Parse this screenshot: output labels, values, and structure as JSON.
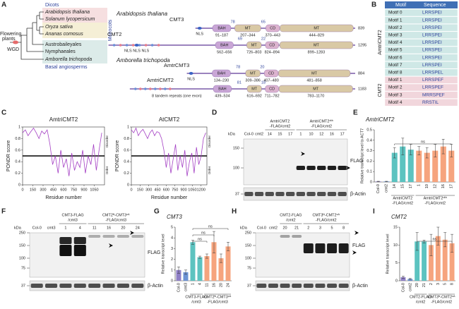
{
  "panel_letters": [
    "A",
    "B",
    "C",
    "D",
    "E",
    "F",
    "G",
    "H",
    "I"
  ],
  "panel_a": {
    "species": [
      "Arabidopsis thaliana",
      "Solanum lycopersicum",
      "Oryza sativa",
      "Ananas comosus",
      "Austrobaileyales",
      "Nymphaeales",
      "Amborella trichopoda"
    ],
    "groups": [
      "Dicots",
      "Monocots",
      "Basal angiosperms"
    ],
    "root": [
      "Flowering",
      "plants"
    ],
    "wgd": "WGD",
    "diagram_species": [
      "Arabidopsis thaliana",
      "Amborella trichopoda"
    ],
    "repeat_note": "8 tandem repeats (one exon)",
    "proteins": [
      {
        "name": "CMT3",
        "length": 839,
        "nls": "NLS",
        "linkers": [
          78,
          65
        ],
        "domains": [
          {
            "name": "BAH",
            "start": 91,
            "end": 187,
            "range": "91–187"
          },
          {
            "name": "MT",
            "start": 207,
            "end": 344,
            "range": "207–344"
          },
          {
            "name": "CD",
            "start": 370,
            "end": 443,
            "range": "370–443"
          },
          {
            "name": "MT",
            "start": 444,
            "end": 829,
            "range": "444–829"
          }
        ]
      },
      {
        "name": "CMT2",
        "length": 1295,
        "nls": "NLS NLS NLS",
        "linkers": [
          69,
          22
        ],
        "domains": [
          {
            "name": "BAH",
            "start": 562,
            "end": 656,
            "range": "562–656"
          },
          {
            "name": "MT",
            "start": 726,
            "end": 803,
            "range": "726–803"
          },
          {
            "name": "CD",
            "start": 824,
            "end": 894,
            "range": "824–894"
          },
          {
            "name": "MT",
            "start": 899,
            "end": 1283,
            "range": "899–1283"
          }
        ]
      },
      {
        "name": "AmtrCMT3",
        "length": 884,
        "nls": "NLS",
        "linkers": [
          78,
          20
        ],
        "domains": [
          {
            "name": "BAH",
            "start": 134,
            "end": 230,
            "range": "134–230"
          },
          {
            "name": "MT",
            "start": 309,
            "end": 386,
            "range": "309–386"
          },
          {
            "name": "CD",
            "start": 407,
            "end": 480,
            "range": "407–480"
          },
          {
            "name": "MT",
            "start": 481,
            "end": 858,
            "range": "481–858"
          }
        ]
      },
      {
        "name": "AmtriCMT2",
        "length": 1183,
        "nls": "",
        "linkers": [
          81,
          18
        ],
        "domains": [
          {
            "name": "BAH",
            "start": 439,
            "end": 534,
            "range": "439–534"
          },
          {
            "name": "MT",
            "start": 616,
            "end": 692,
            "range": "616–692"
          },
          {
            "name": "CD",
            "start": 711,
            "end": 782,
            "range": "711–782"
          },
          {
            "name": "MT",
            "start": 783,
            "end": 1170,
            "range": "783–1170"
          }
        ]
      }
    ]
  },
  "panel_b": {
    "header": [
      "Motif",
      "Sequence"
    ],
    "groups": [
      "AmtriCMT2",
      "CMT2"
    ],
    "rows": [
      [
        "Motif 0",
        "LRRSPEI"
      ],
      [
        "Motif 1",
        "LRRSPEI"
      ],
      [
        "Motif 2",
        "LRRSPEI"
      ],
      [
        "Motif 3",
        "LRRSPEI"
      ],
      [
        "Motif 4",
        "LRRSPEI"
      ],
      [
        "Motif 5",
        "LRRSPEI"
      ],
      [
        "Motif 6",
        "LRRSPEI"
      ],
      [
        "Motif 7",
        "LRRSPEI"
      ],
      [
        "Motif 8",
        "LRRSPEL"
      ],
      [
        "Motif 1",
        "LRRSPEF"
      ],
      [
        "Motif 2",
        "LRRSPEF"
      ],
      [
        "Motif 3",
        "MRRSPEF"
      ],
      [
        "Motif 4",
        "RRSTIL"
      ]
    ]
  },
  "blots": [
    {
      "lanes": [
        "Col-0",
        "cmt2",
        "14",
        "15",
        "17",
        "1",
        "10",
        "12",
        "16",
        "17"
      ],
      "groups": [
        [
          "AmtriCMT2",
          "-FLAG/cmt2"
        ],
        [
          "AmtriCMT2ᵈᵗʰ",
          "-FLAG/cmt2"
        ]
      ],
      "unit": "kDa",
      "markers": [
        "150",
        "100",
        "37"
      ],
      "signals": [
        "FLAG",
        "β-Actin"
      ]
    },
    {
      "lanes": [
        "Col-0",
        "cmt3",
        "1",
        "4",
        "11",
        "16",
        "20",
        "24"
      ],
      "groups": [
        [
          "CMT3-FLAG",
          "/cmt3"
        ],
        [
          "CMT2ᴺ-CMT3ᶜᴬ",
          "-FLAG/cmt3"
        ]
      ],
      "unit": "kDa",
      "markers": [
        "250",
        "150",
        "100",
        "75",
        "37"
      ],
      "signals": [
        "FLAG",
        "β-Actin"
      ]
    },
    {
      "lanes": [
        "Col-0",
        "cmt2",
        "20",
        "21",
        "2",
        "3",
        "5",
        "8"
      ],
      "groups": [
        [
          "CMT2-FLAG",
          "/cmt2"
        ],
        [
          "CMT3ᴺ-CMT2ᶜᴬ",
          "-FLAG/cmt2"
        ]
      ],
      "unit": "kDa",
      "markers": [
        "250",
        "150",
        "100",
        "75",
        "37"
      ],
      "signals": [
        "FLAG",
        "β-Actin"
      ]
    }
  ],
  "chart_data": [
    {
      "type": "line",
      "title": "AmtriCMT2",
      "xlabel": "Residue number",
      "ylabel": "PONDR score",
      "zones": [
        "Disorder",
        "Order"
      ],
      "color": "#a43fc4",
      "threshold": 0.5,
      "x": [
        0,
        40,
        80,
        120,
        160,
        200,
        240,
        280,
        320,
        360,
        400,
        440,
        480,
        520,
        560,
        600,
        640,
        680,
        720,
        760,
        800,
        840,
        880,
        920,
        960,
        1000,
        1040,
        1080,
        1120,
        1160
      ],
      "values": [
        0.9,
        0.95,
        0.85,
        0.92,
        0.98,
        0.9,
        0.8,
        0.93,
        0.88,
        0.95,
        0.7,
        0.35,
        0.5,
        0.2,
        0.6,
        0.3,
        0.45,
        0.15,
        0.55,
        0.25,
        0.4,
        0.3,
        0.6,
        0.2,
        0.5,
        0.35,
        0.7,
        0.25,
        0.6,
        0.9
      ],
      "xlim": [
        0,
        1200
      ],
      "xticks": [
        0,
        150,
        300,
        450,
        600,
        750,
        900,
        1050
      ],
      "ylim": [
        0,
        1
      ],
      "yticks": [
        0,
        0.2,
        0.4,
        0.6,
        0.8,
        1
      ]
    },
    {
      "type": "line",
      "title": "AtCMT2",
      "xlabel": "Residue number",
      "ylabel": "PONDR score",
      "zones": [
        "Disorder",
        "Order"
      ],
      "color": "#a43fc4",
      "threshold": 0.5,
      "x": [
        0,
        40,
        80,
        120,
        160,
        200,
        240,
        280,
        320,
        360,
        400,
        440,
        480,
        520,
        560,
        600,
        640,
        680,
        720,
        760,
        800,
        840,
        880,
        920,
        960,
        1000,
        1040,
        1080,
        1120,
        1160,
        1200,
        1240,
        1280
      ],
      "values": [
        0.95,
        0.9,
        0.98,
        0.85,
        0.92,
        0.96,
        0.88,
        0.8,
        0.9,
        0.95,
        0.85,
        0.92,
        0.9,
        0.8,
        0.6,
        0.3,
        0.55,
        0.2,
        0.45,
        0.7,
        0.25,
        0.5,
        0.3,
        0.6,
        0.15,
        0.4,
        0.55,
        0.2,
        0.65,
        0.35,
        0.5,
        0.8,
        0.9
      ],
      "xlim": [
        0,
        1300
      ],
      "xticks": [
        0,
        150,
        300,
        450,
        600,
        750,
        900,
        1050,
        1200
      ],
      "ylim": [
        0,
        1
      ],
      "yticks": [
        0,
        0.2,
        0.4,
        0.6,
        0.8,
        1
      ]
    },
    {
      "type": "bar",
      "title": "AmtriCMT2",
      "ylabel": "Relative transcript level to ACT7",
      "categories": [
        "Col-0",
        "cmt2",
        "14",
        "15",
        "17",
        "1",
        "10",
        "12",
        "16",
        "17"
      ],
      "values": [
        0.005,
        0.005,
        0.28,
        0.34,
        0.31,
        0.3,
        0.28,
        0.3,
        0.34,
        0.3
      ],
      "errors": [
        0.002,
        0.002,
        0.05,
        0.08,
        0.05,
        0.04,
        0.05,
        0.06,
        0.07,
        0.06
      ],
      "colors": [
        "#8f7fc6",
        "#6d93d4",
        "#5cc3c0",
        "#5cc3c0",
        "#5cc3c0",
        "#f6a47e",
        "#f6a47e",
        "#f6a47e",
        "#f6a47e",
        "#f6a47e"
      ],
      "ylim": [
        0,
        0.5
      ],
      "yticks": [
        0,
        0.1,
        0.2,
        0.3,
        0.4,
        0.5
      ],
      "group_labels": [
        [
          "AmtriCMT2",
          "-FLAG/cmt2"
        ],
        [
          "AmtriCMT2ᵈᵗʰ",
          "-FLAG/cmt2"
        ]
      ],
      "annotations": [
        "ns"
      ]
    },
    {
      "type": "bar",
      "title": "CMT3",
      "ylabel": "Relative transcript level",
      "categories": [
        "Col-0",
        "cmt3",
        "1",
        "4",
        "11",
        "16",
        "20",
        "24"
      ],
      "values": [
        1.0,
        0.8,
        3.6,
        2.2,
        2.3,
        3.6,
        2.1,
        3.2
      ],
      "errors": [
        0.3,
        0.2,
        0.2,
        0.1,
        0.2,
        1.0,
        0.4,
        0.4
      ],
      "colors": [
        "#8f7fc6",
        "#6d93d4",
        "#5cc3c0",
        "#5cc3c0",
        "#f6a47e",
        "#f6a47e",
        "#f6a47e",
        "#f6a47e"
      ],
      "ylim": [
        0,
        5
      ],
      "yticks": [
        0,
        1,
        2,
        3,
        4,
        5
      ],
      "group_labels": [
        [
          "CMT3-FLAG",
          "/cmt3"
        ],
        [
          "CMT2ᴺ-CMT3ᶜᴬ",
          "-FLAG/cmt3"
        ]
      ],
      "annotations": [
        "ns",
        "ns",
        "ns"
      ]
    },
    {
      "type": "bar",
      "title": "CMT2",
      "ylabel": "Relative transcript level",
      "categories": [
        "Col-0",
        "cmt2",
        "20",
        "21",
        "2",
        "3",
        "5",
        "8"
      ],
      "values": [
        1.0,
        0.5,
        11,
        11,
        10,
        12.5,
        11.5,
        10.5
      ],
      "errors": [
        0.3,
        0.2,
        2.5,
        0.4,
        3.0,
        2.5,
        2.0,
        2.5
      ],
      "colors": [
        "#8f7fc6",
        "#6d93d4",
        "#5cc3c0",
        "#5cc3c0",
        "#f6a47e",
        "#f6a47e",
        "#f6a47e",
        "#f6a47e"
      ],
      "ylim": [
        0,
        15
      ],
      "yticks": [
        0,
        5,
        10,
        15
      ],
      "group_labels": [
        [
          "CMT2-FLAG",
          "/cmt2"
        ],
        [
          "CMT3ᴺ-CMT2ᶜᴬ",
          "-FLAG/cmt2"
        ]
      ],
      "annotations": [
        "ns"
      ]
    }
  ]
}
